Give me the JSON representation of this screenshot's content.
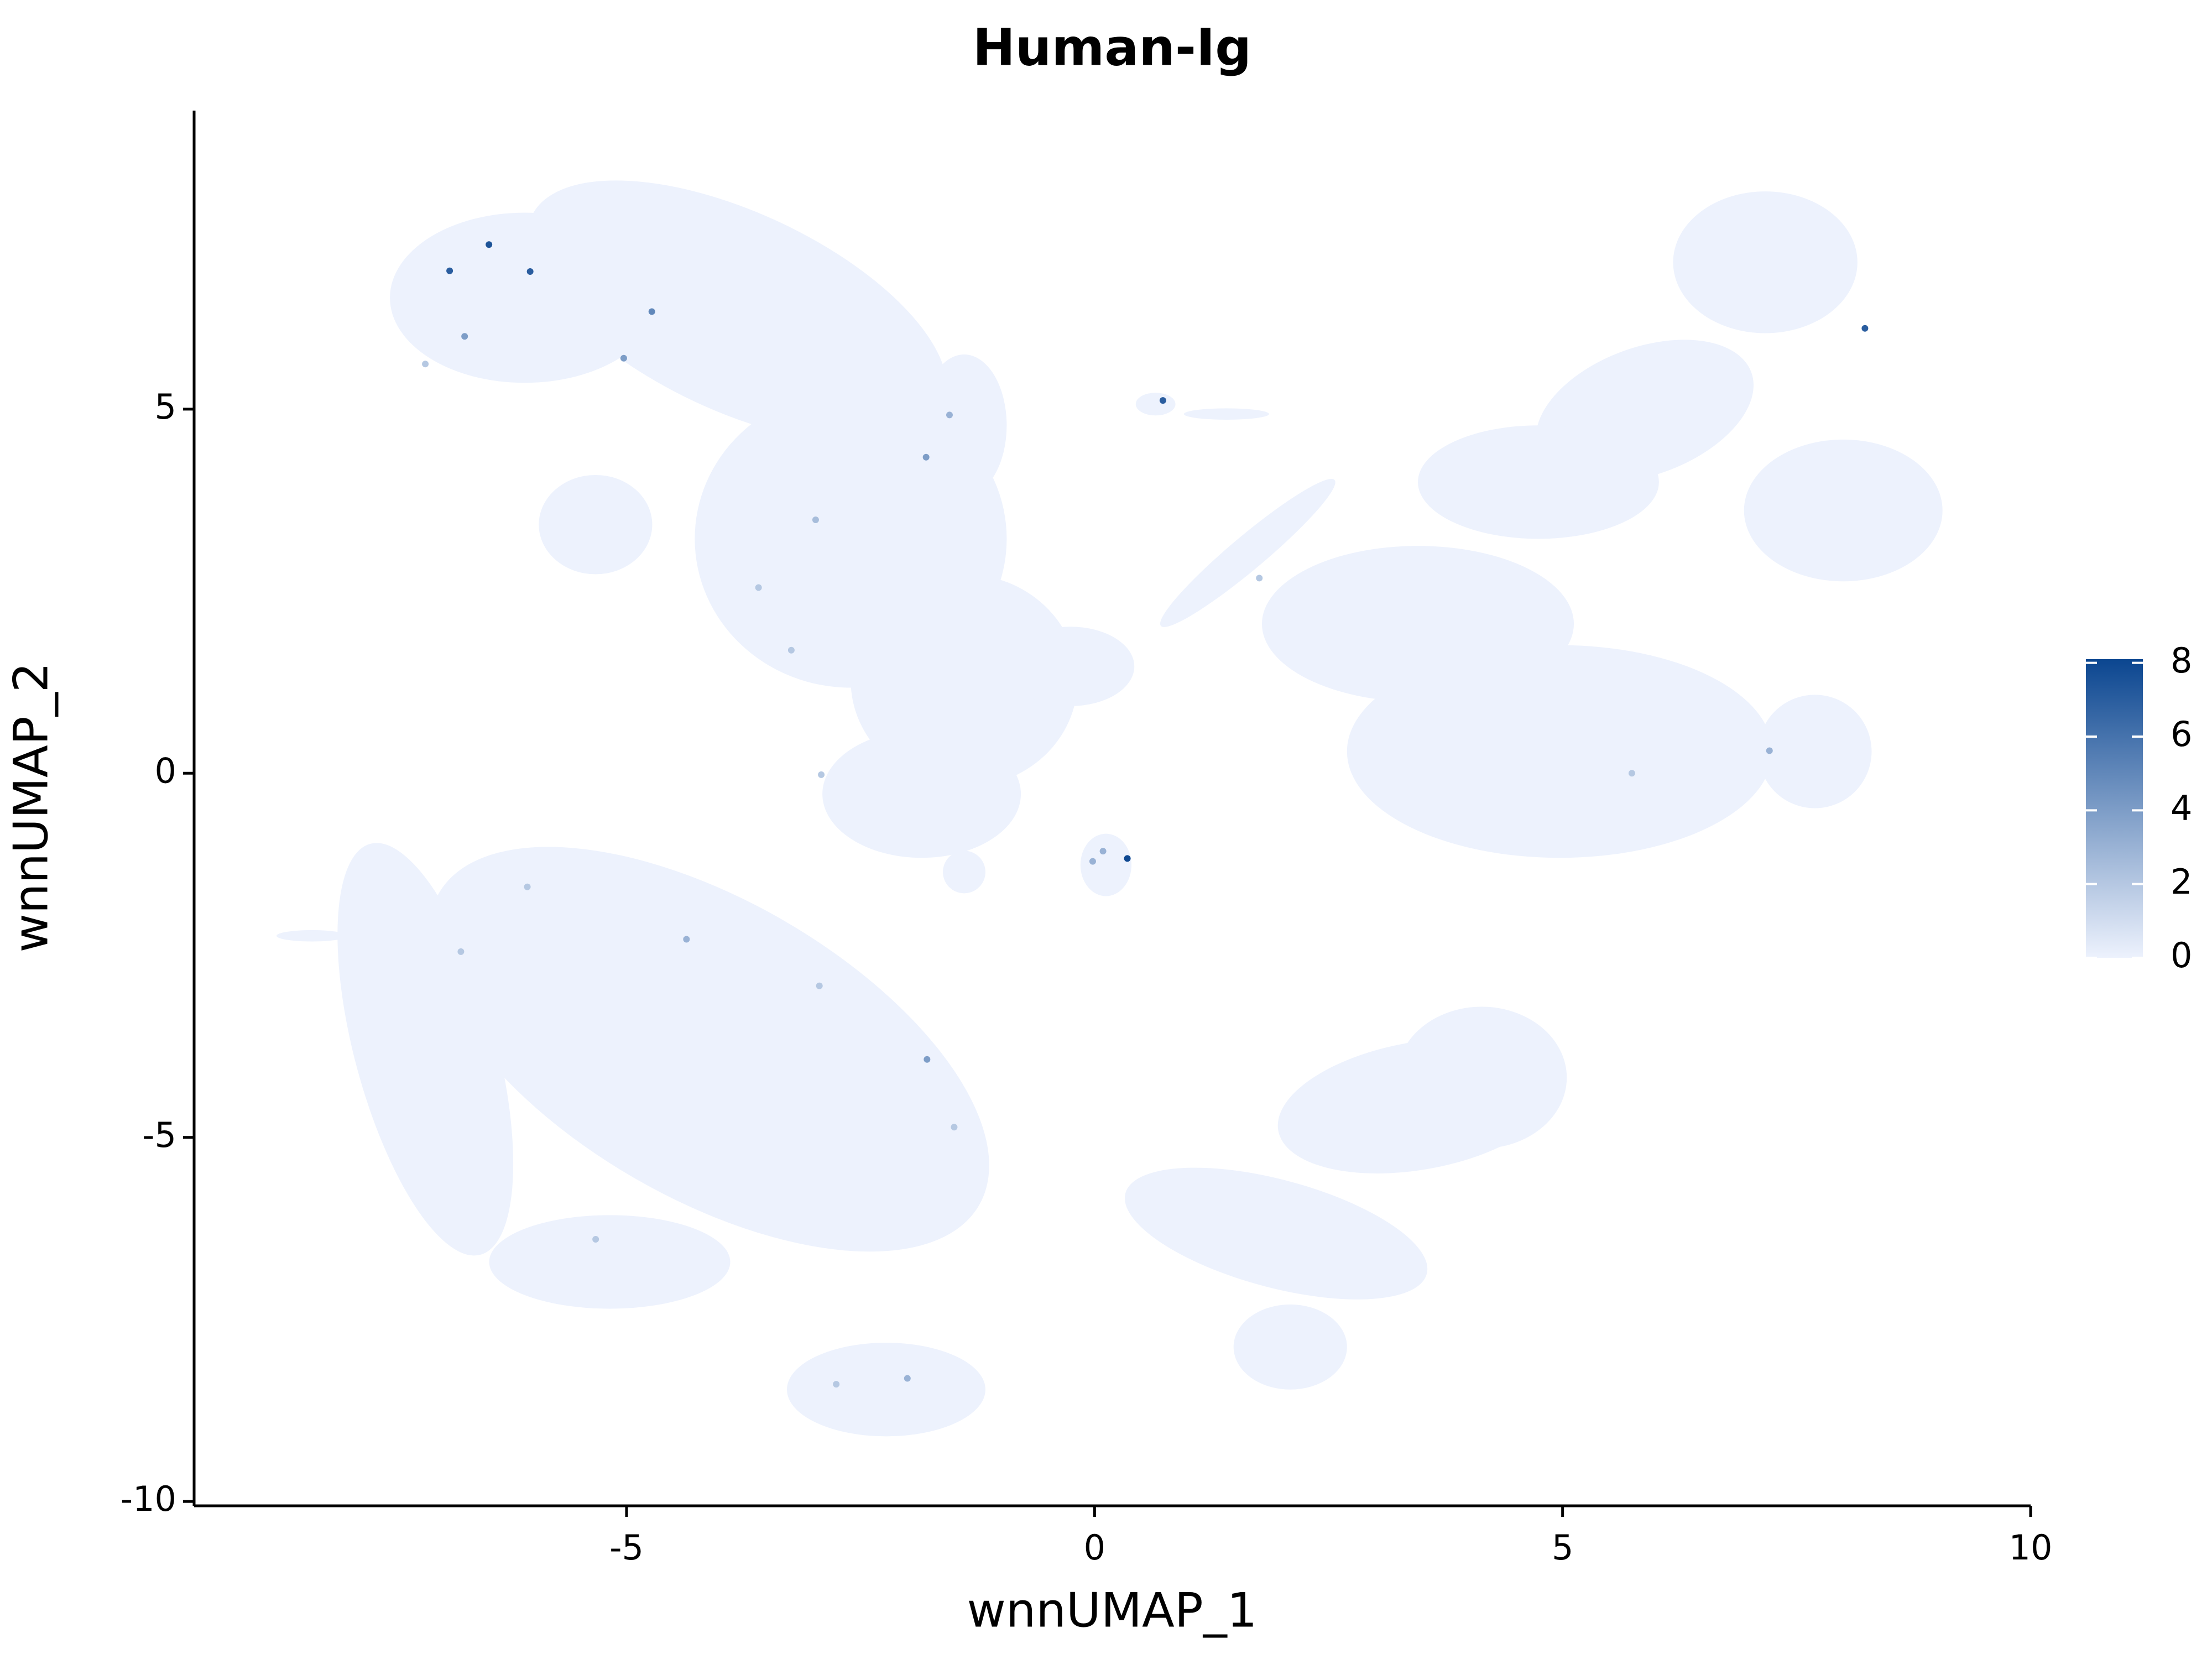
{
  "chart_data": {
    "type": "scatter",
    "title": "Human-Ig",
    "x_label": "wnnUMAP_1",
    "y_label": "wnnUMAP_2",
    "xlim": [
      -9.62,
      10
    ],
    "ylim": [
      -10.06,
      9.1
    ],
    "xticks": [
      -5,
      0,
      5,
      10
    ],
    "yticks": [
      -10,
      -5,
      0,
      5
    ],
    "x": [
      -6.89,
      -6.47,
      -6.03,
      -4.73,
      -5.03,
      -6.73,
      -1.8,
      -1.55,
      0.73,
      0.35,
      8.23,
      7.21,
      -1.79,
      -4.36,
      -2.0,
      -2.98,
      -3.59,
      -3.24,
      -2.92,
      -6.77,
      -2.94,
      -1.5,
      -5.33,
      -2.76,
      -0.02,
      0.09,
      -7.15,
      1.76,
      5.74,
      -6.06
    ],
    "values": [
      6.9,
      7.26,
      6.89,
      6.34,
      5.7,
      6.0,
      4.34,
      4.92,
      5.12,
      -1.17,
      6.11,
      0.31,
      -3.93,
      -2.28,
      -8.31,
      3.48,
      2.55,
      1.69,
      -0.02,
      -2.45,
      -2.92,
      -4.86,
      -6.4,
      -8.39,
      -1.21,
      -1.07,
      5.62,
      2.68,
      0.0,
      -1.56
    ],
    "expression": [
      7,
      7.5,
      7,
      5,
      4,
      4,
      4,
      3,
      7,
      8,
      7,
      3,
      4,
      3,
      3,
      2.5,
      2,
      2,
      2,
      2,
      2,
      2,
      2,
      2,
      3,
      3,
      2,
      2,
      2,
      2
    ],
    "colors": [
      "#edf2fd",
      "#0b4690"
    ],
    "clim": [
      0,
      8.1
    ],
    "colorbar_ticks": [
      0,
      2,
      4,
      6,
      8
    ]
  }
}
